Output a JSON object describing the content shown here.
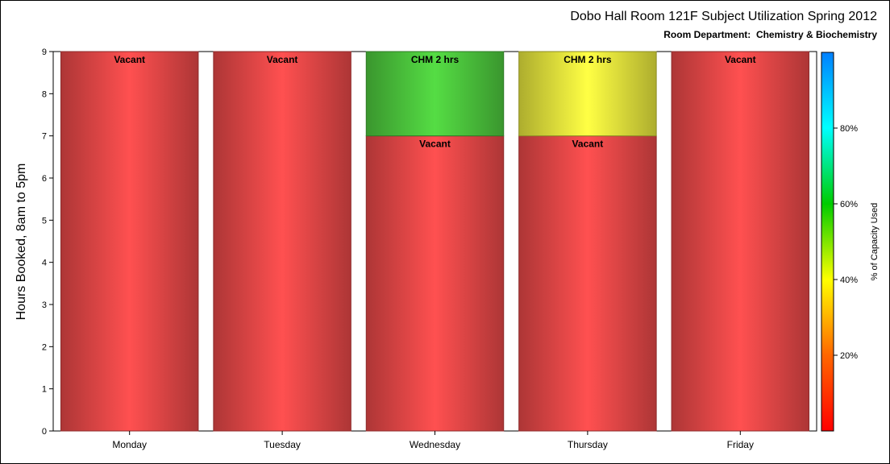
{
  "chart_data": {
    "type": "bar",
    "title": "Dobo Hall Room 121F Subject Utilization Spring 2012",
    "subtitle": "Room Department:  Chemistry & Biochemistry",
    "ylabel": "Hours Booked, 8am to 5pm",
    "xlabel": "",
    "ylim": [
      0,
      9
    ],
    "yticks": [
      "0",
      "1",
      "2",
      "3",
      "4",
      "5",
      "6",
      "7",
      "8",
      "9"
    ],
    "grid": false,
    "categories": [
      "Monday",
      "Tuesday",
      "Wednesday",
      "Thursday",
      "Friday"
    ],
    "bars": [
      {
        "category": "Monday",
        "segments": [
          {
            "label": "Vacant",
            "hours": 9,
            "color": "#ff5050"
          }
        ]
      },
      {
        "category": "Tuesday",
        "segments": [
          {
            "label": "Vacant",
            "hours": 9,
            "color": "#ff5050"
          }
        ]
      },
      {
        "category": "Wednesday",
        "segments": [
          {
            "label": "Vacant",
            "hours": 7,
            "color": "#ff5050"
          },
          {
            "label": "CHM 2 hrs",
            "hours": 2,
            "color": "#55dd44"
          }
        ]
      },
      {
        "category": "Thursday",
        "segments": [
          {
            "label": "Vacant",
            "hours": 7,
            "color": "#ff5050"
          },
          {
            "label": "CHM 2 hrs",
            "hours": 2,
            "color": "#ffff44"
          }
        ]
      },
      {
        "category": "Friday",
        "segments": [
          {
            "label": "Vacant",
            "hours": 9,
            "color": "#ff5050"
          }
        ]
      }
    ],
    "colorbar": {
      "title": "% of Capacity Used",
      "ticks": [
        20,
        40,
        60,
        80
      ],
      "tick_labels": [
        "20%",
        "40%",
        "60%",
        "80%"
      ],
      "range": [
        0,
        100
      ],
      "colors": [
        "#ff0000",
        "#ff6600",
        "#ffff00",
        "#00cc00",
        "#00ffff",
        "#0080ff"
      ],
      "placement": "right"
    }
  }
}
